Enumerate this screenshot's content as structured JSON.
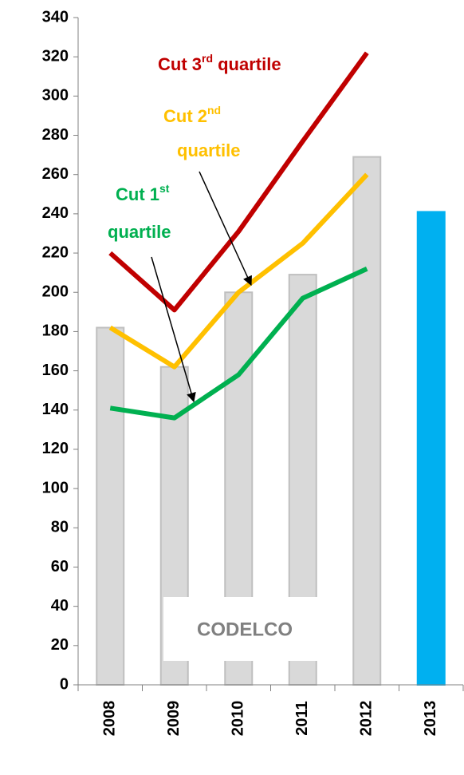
{
  "chart_data": {
    "type": "bar",
    "categories": [
      "2008",
      "2009",
      "2010",
      "2011",
      "2012",
      "2013"
    ],
    "values": [
      182,
      162,
      200,
      209,
      269,
      241
    ],
    "colors": [
      "#d9d9d9",
      "#d9d9d9",
      "#d9d9d9",
      "#d9d9d9",
      "#d9d9d9",
      "#00b0f0"
    ],
    "ylim": [
      0,
      340
    ],
    "yticks": [
      0,
      20,
      40,
      60,
      80,
      100,
      120,
      140,
      160,
      180,
      200,
      220,
      240,
      260,
      280,
      300,
      320,
      340
    ],
    "series": [
      {
        "type": "line",
        "color": "#c00000",
        "values": [
          220,
          191,
          231,
          277,
          322,
          null
        ],
        "label": [
          [
            {
              "text": "Cut 3"
            },
            {
              "text": "rd",
              "sup": true
            },
            {
              "text": " quartile"
            }
          ]
        ]
      },
      {
        "type": "line",
        "color": "#ffc000",
        "values": [
          182,
          162,
          200,
          225,
          260,
          null
        ],
        "label": [
          [
            {
              "text": "Cut 2"
            },
            {
              "text": "nd",
              "sup": true
            }
          ],
          [
            {
              "text": "quartile"
            }
          ]
        ]
      },
      {
        "type": "line",
        "color": "#00b050",
        "values": [
          141,
          136,
          158,
          197,
          212,
          null
        ],
        "label": [
          [
            {
              "text": "Cut 1"
            },
            {
              "text": "st",
              "sup": true
            }
          ],
          [
            {
              "text": "quartile"
            }
          ]
        ]
      }
    ],
    "annotation": "CODELCO"
  }
}
